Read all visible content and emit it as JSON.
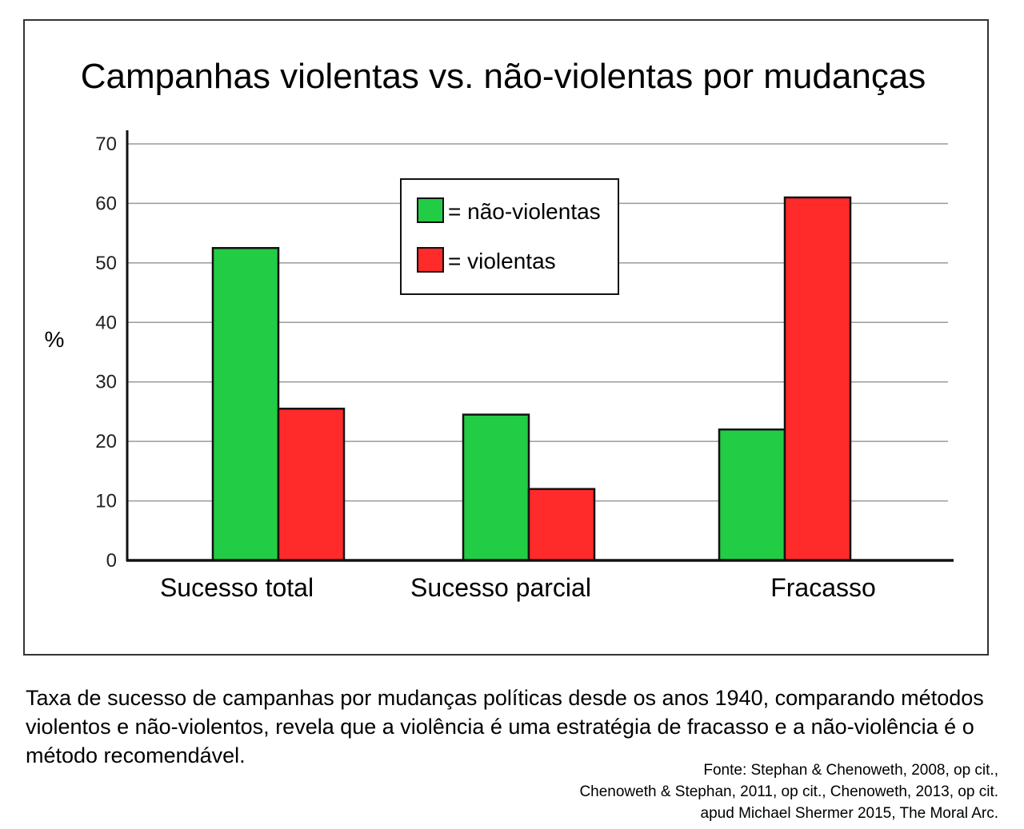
{
  "chart_data": {
    "type": "bar",
    "title": "Campanhas violentas vs. não-violentas por mudanças",
    "ylabel": "%",
    "xlabel": "",
    "ylim": [
      0,
      70
    ],
    "yticks": [
      "0",
      "10",
      "20",
      "30",
      "40",
      "50",
      "60",
      "70"
    ],
    "grid": true,
    "categories": [
      "Sucesso total",
      "Sucesso parcial",
      "Fracasso"
    ],
    "series": [
      {
        "name": "= não-violentas",
        "color": "#22cc44",
        "values": [
          52.5,
          24.5,
          22
        ]
      },
      {
        "name": "= violentas",
        "color": "#ff2a2a",
        "values": [
          25.5,
          12,
          61
        ]
      }
    ],
    "legend_position": "top-center"
  },
  "caption": "Taxa de sucesso de campanhas por mudanças políticas desde os anos 1940, comparando métodos violentos e não-violentos, revela que a violência é uma estratégia de fracasso e a não-violência é o método recomendável.",
  "source": [
    "Fonte: Stephan & Chenoweth, 2008, op cit.,",
    "Chenoweth & Stephan, 2011, op cit., Chenoweth, 2013, op cit.",
    "apud Michael Shermer 2015, The Moral Arc."
  ]
}
